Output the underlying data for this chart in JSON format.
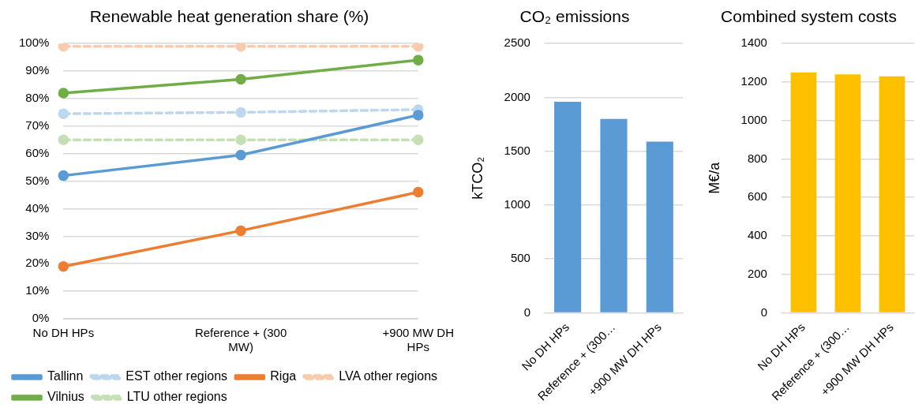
{
  "chart_data": [
    {
      "type": "line",
      "title": "Renewable heat generation share (%)",
      "categories": [
        "No DH HPs",
        "Reference + (300 MW)",
        "+900 MW DH HPs"
      ],
      "series": [
        {
          "name": "Tallinn",
          "color": "#5b9bd5",
          "values": [
            52,
            59.5,
            74
          ]
        },
        {
          "name": "EST other regions",
          "color": "#bdd7ee",
          "values": [
            74.5,
            75,
            76
          ],
          "line_style": "dashed"
        },
        {
          "name": "Riga",
          "color": "#ed7d31",
          "values": [
            19,
            32,
            46
          ]
        },
        {
          "name": "LVA other regions",
          "color": "#f8cbad",
          "values": [
            99,
            99,
            99
          ],
          "line_style": "dashed"
        },
        {
          "name": "Vilnius",
          "color": "#70ad47",
          "values": [
            82,
            87,
            94
          ]
        },
        {
          "name": "LTU other regions",
          "color": "#c5e0b4",
          "values": [
            65,
            65,
            65
          ],
          "line_style": "dashed"
        }
      ],
      "ylim": [
        0,
        100
      ],
      "yticks": [
        {
          "value": 0,
          "label": "0%"
        },
        {
          "value": 10,
          "label": "10%"
        },
        {
          "value": 20,
          "label": "20%"
        },
        {
          "value": 30,
          "label": "30%"
        },
        {
          "value": 40,
          "label": "40%"
        },
        {
          "value": 50,
          "label": "50%"
        },
        {
          "value": 60,
          "label": "60%"
        },
        {
          "value": 70,
          "label": "70%"
        },
        {
          "value": 80,
          "label": "80%"
        },
        {
          "value": 90,
          "label": "90%"
        },
        {
          "value": 100,
          "label": "100%"
        }
      ],
      "grid": "y",
      "legend": "bottom",
      "marker": "circle",
      "line_style": "solid"
    },
    {
      "type": "bar",
      "title": "CO₂ emissions",
      "ylabel": "kTCO₂",
      "categories": [
        "No DH HPs",
        "Reference + (300…",
        "+900 MW DH HPs"
      ],
      "values": [
        1960,
        1800,
        1590
      ],
      "color": "#5b9bd5",
      "ylim": [
        0,
        2500
      ],
      "yticks": [
        0,
        500,
        1000,
        1500,
        2000,
        2500
      ],
      "grid": "y"
    },
    {
      "type": "bar",
      "title": "Combined system costs",
      "ylabel": "M€/a",
      "categories": [
        "No DH HPs",
        "Reference + (300…",
        "+900 MW DH HPs"
      ],
      "values": [
        1250,
        1240,
        1230
      ],
      "color": "#ffc000",
      "ylim": [
        0,
        1400
      ],
      "yticks": [
        0,
        200,
        400,
        600,
        800,
        1000,
        1200,
        1400
      ],
      "grid": "y"
    }
  ]
}
